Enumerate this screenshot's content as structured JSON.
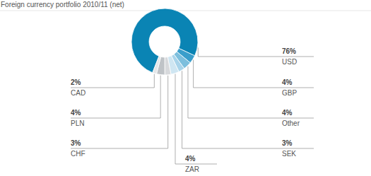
{
  "chart_data": {
    "type": "donut",
    "title": "Foreign currency portfolio 2010/11 (net)",
    "categories": [
      "USD",
      "GBP",
      "Other",
      "SEK",
      "ZAR",
      "CHF",
      "PLN",
      "CAD"
    ],
    "values": [
      76,
      4,
      4,
      3,
      4,
      3,
      4,
      2
    ],
    "value_labels": [
      "76%",
      "4%",
      "4%",
      "3%",
      "4%",
      "3%",
      "4%",
      "2%"
    ],
    "colors": [
      "#0a84b4",
      "#3a9ecb",
      "#7dbfdd",
      "#a9d4ea",
      "#cfe6f2",
      "#d7d9dc",
      "#bfc3c7",
      "#e4e6e8"
    ],
    "data_labels": true
  }
}
